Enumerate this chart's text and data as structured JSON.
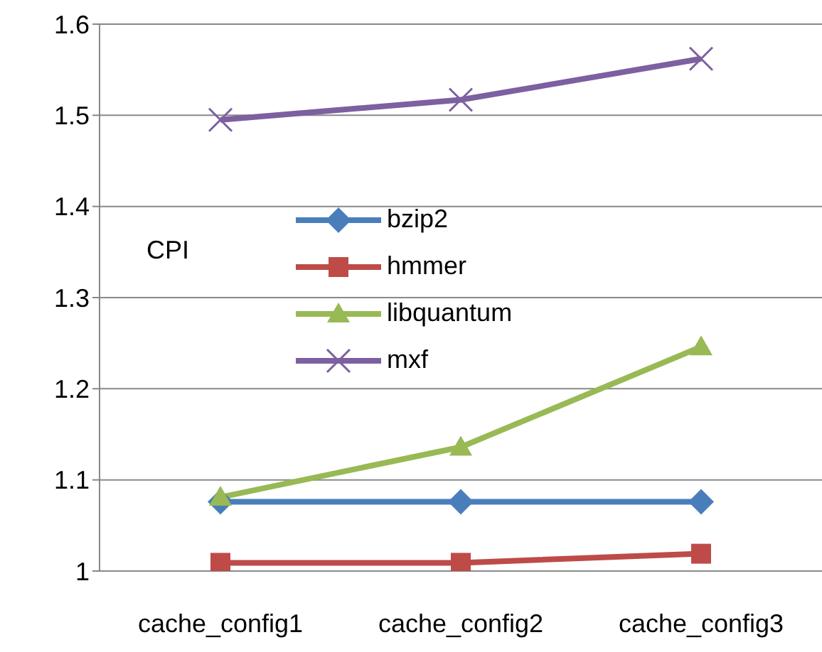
{
  "chart_data": {
    "type": "line",
    "ylabel": "CPI",
    "categories": [
      "cache_config1",
      "cache_config2",
      "cache_config3"
    ],
    "series": [
      {
        "name": "bzip2",
        "color": "#4a7ebb",
        "marker": "diamond",
        "values": [
          1.076,
          1.076,
          1.076
        ]
      },
      {
        "name": "hmmer",
        "color": "#be4b48",
        "marker": "square",
        "values": [
          1.009,
          1.009,
          1.019
        ]
      },
      {
        "name": "libquantum",
        "color": "#98b954",
        "marker": "triangle",
        "values": [
          1.081,
          1.136,
          1.246
        ]
      },
      {
        "name": "mxf",
        "color": "#7d60a0",
        "marker": "cross",
        "values": [
          1.495,
          1.517,
          1.562
        ]
      }
    ],
    "ylim": [
      1,
      1.6
    ],
    "yticks": [
      1,
      1.1,
      1.2,
      1.3,
      1.4,
      1.5,
      1.6
    ],
    "grid": "y",
    "legend": "top left"
  }
}
